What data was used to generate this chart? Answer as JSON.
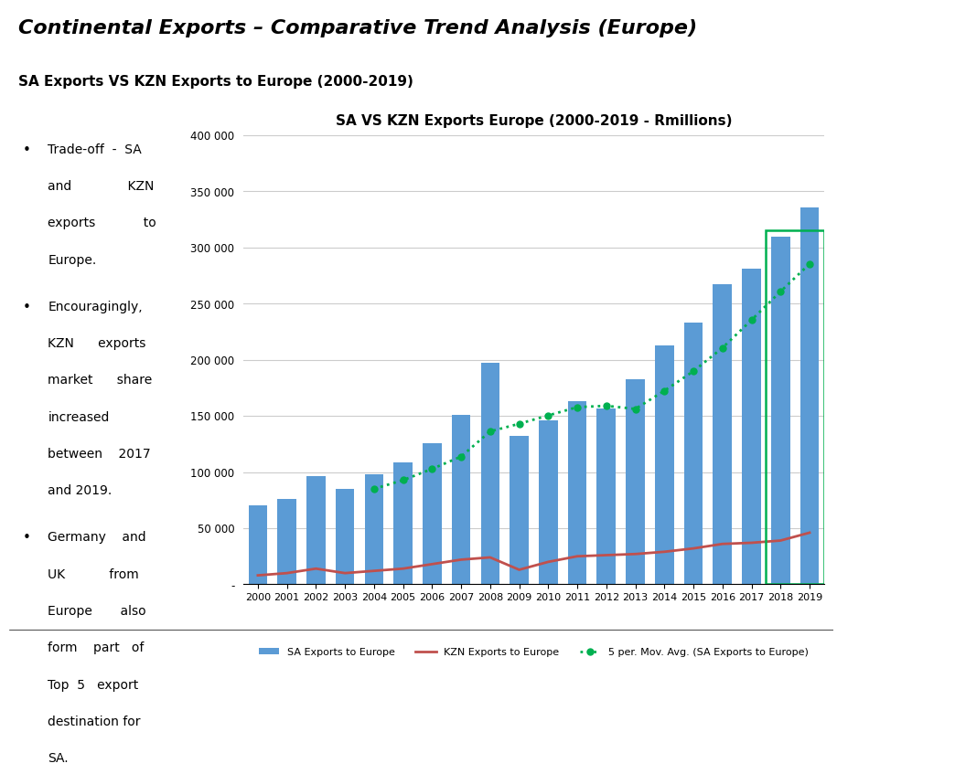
{
  "title": "SA VS KZN Exports Europe (2000-2019 - Rmillions)",
  "main_title": "Continental Exports – Comparative Trend Analysis (Europe)",
  "subtitle": "SA Exports VS KZN Exports to Europe (2000-2019)",
  "years": [
    2000,
    2001,
    2002,
    2003,
    2004,
    2005,
    2006,
    2007,
    2008,
    2009,
    2010,
    2011,
    2012,
    2013,
    2014,
    2015,
    2016,
    2017,
    2018,
    2019
  ],
  "sa_exports": [
    70000,
    76000,
    96000,
    85000,
    98000,
    109000,
    126000,
    151000,
    197000,
    132000,
    146000,
    163000,
    157000,
    183000,
    213000,
    233000,
    267000,
    281000,
    310000,
    336000
  ],
  "kzn_exports": [
    8000,
    10000,
    14000,
    10000,
    12000,
    14000,
    18000,
    22000,
    24000,
    13000,
    20000,
    25000,
    26000,
    27000,
    29000,
    32000,
    36000,
    37000,
    39000,
    46000
  ],
  "bar_color": "#5B9BD5",
  "kzn_line_color": "#C0504D",
  "ma_line_color": "#00B050",
  "highlight_box_color": "#00B050",
  "ylim": [
    0,
    400000
  ],
  "yticks": [
    0,
    50000,
    100000,
    150000,
    200000,
    250000,
    300000,
    350000,
    400000
  ],
  "ytick_labels": [
    "-",
    "50 000",
    "100 000",
    "150 000",
    "200 000",
    "250 000",
    "300 000",
    "350 000",
    "400 000"
  ],
  "background_color": "#FFFFFF",
  "bullet_points": [
    "Trade-off - SA and KZN exports to Europe.",
    "Encouragingly, KZN exports market share increased between 2017 and 2019.",
    "Germany and UK from Europe also form part of Top 5 export destination for SA."
  ],
  "legend_labels": [
    "SA Exports to Europe",
    "KZN Exports to Europe",
    "5 per. Mov. Avg. (SA Exports to Europe)"
  ],
  "orange_rect_color": "#E36C09"
}
